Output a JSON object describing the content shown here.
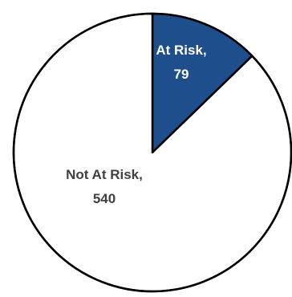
{
  "chart_data": {
    "type": "pie",
    "title": "",
    "slices": [
      {
        "label": "At Risk,",
        "value_text": "79",
        "value": 79,
        "color": "#1f4e8c",
        "label_color": "#ffffff"
      },
      {
        "label": "Not At Risk,",
        "value_text": "540",
        "value": 540,
        "color": "#ffffff",
        "label_color": "#404040"
      }
    ],
    "outline_color": "#000000",
    "start_angle": "12 o'clock",
    "direction": "clockwise"
  }
}
